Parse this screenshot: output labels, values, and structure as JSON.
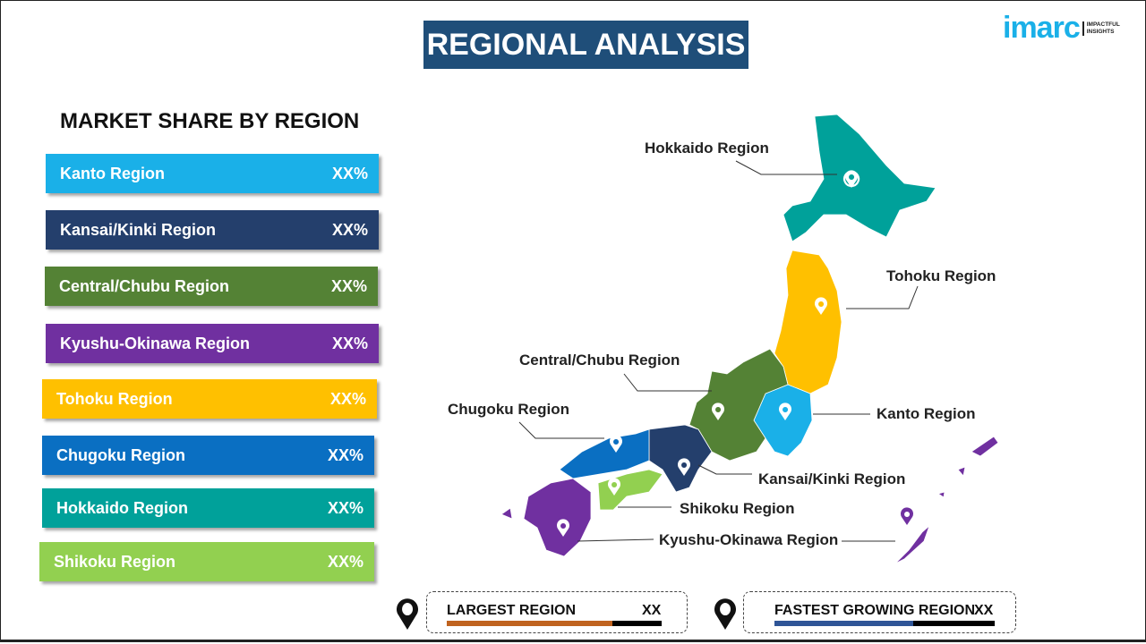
{
  "header": {
    "title": "REGIONAL ANALYSIS",
    "logo": {
      "word": "imarc",
      "tagline": "IMPACTFUL INSIGHTS"
    }
  },
  "left": {
    "title": "MARKET SHARE BY REGION",
    "items": [
      {
        "label": "Kanto Region",
        "value": "XX%",
        "color": "#1ab0e8"
      },
      {
        "label": "Kansai/Kinki  Region",
        "value": "XX%",
        "color": "#243f6c"
      },
      {
        "label": "Central/Chubu  Region",
        "value": "XX%",
        "color": "#548235"
      },
      {
        "label": "Kyushu-Okinawa  Region",
        "value": "XX%",
        "color": "#7030a0"
      },
      {
        "label": "Tohoku Region",
        "value": "XX%",
        "color": "#ffc000"
      },
      {
        "label": "Chugoku Region",
        "value": "XX%",
        "color": "#0a6fc2"
      },
      {
        "label": "Hokkaido Region",
        "value": "XX%",
        "color": "#00a19a"
      },
      {
        "label": "Shikoku Region",
        "value": "XX%",
        "color": "#92d050"
      }
    ]
  },
  "map": {
    "labels": {
      "hokkaido": "Hokkaido Region",
      "tohoku": "Tohoku Region",
      "central": "Central/Chubu Region",
      "chugoku": "Chugoku Region",
      "kanto": "Kanto Region",
      "kansai": "Kansai/Kinki Region",
      "shikoku": "Shikoku Region",
      "kyushu": "Kyushu-Okinawa Region"
    }
  },
  "footer": {
    "largest": {
      "label": "LARGEST REGION",
      "value": "XX",
      "color": "#c0631f"
    },
    "fastest": {
      "label": "FASTEST GROWING REGION",
      "value": "XX",
      "color": "#2f5597"
    }
  }
}
